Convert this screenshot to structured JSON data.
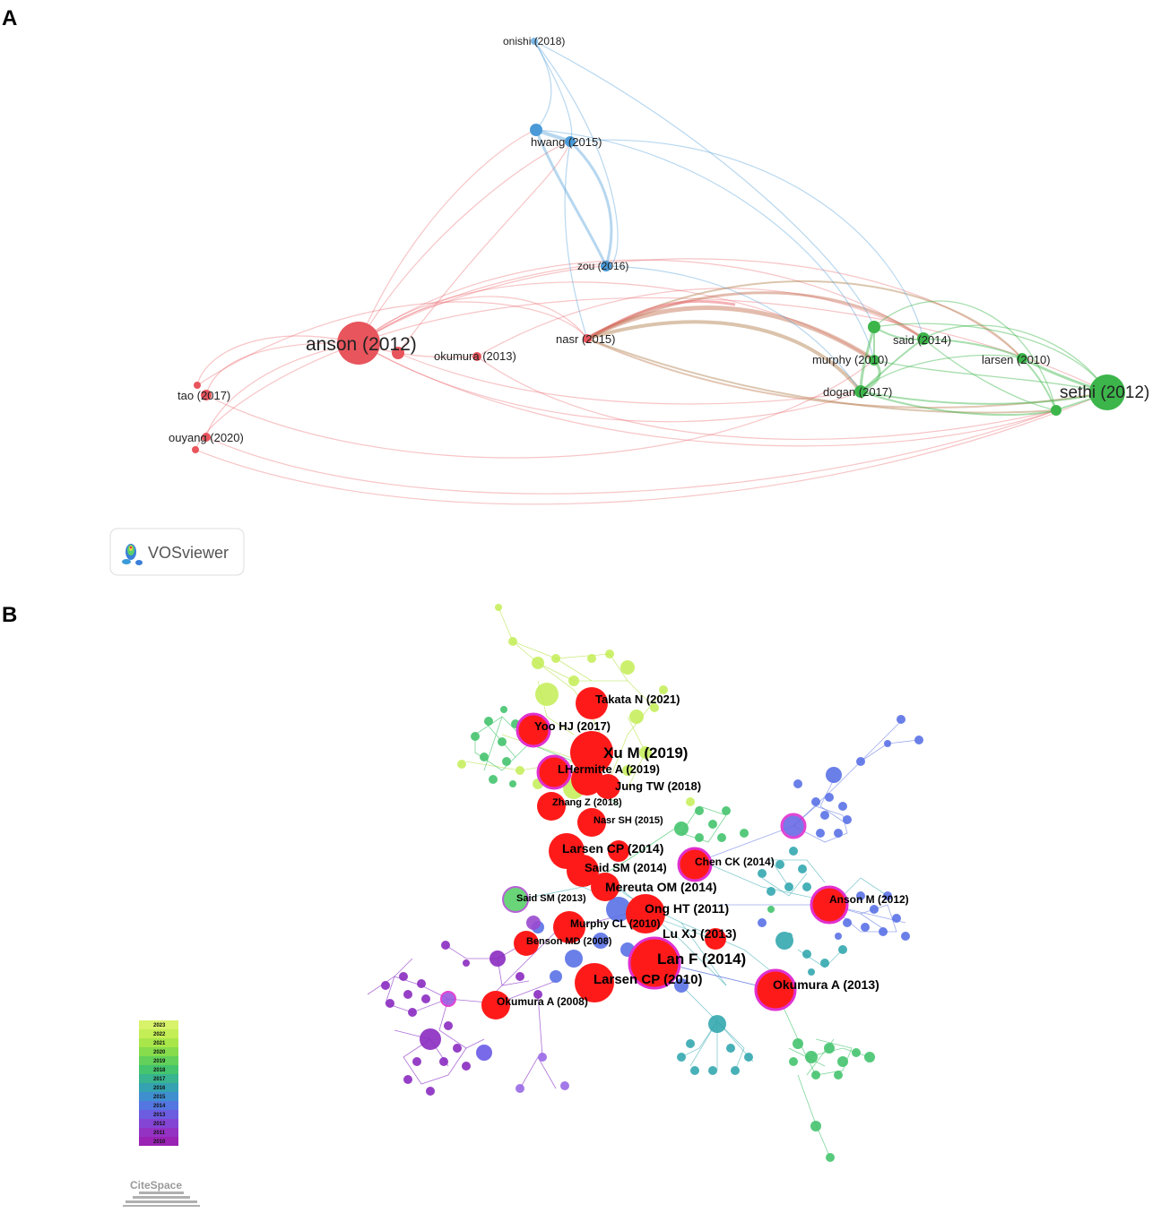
{
  "panel_a": {
    "letter": "A",
    "brand": "VOSviewer",
    "colors": {
      "red": "#e8555d",
      "green": "#3cb54a",
      "blue": "#4a9ad8"
    },
    "labels": {
      "onishi": "onishi (2018)",
      "hwang": "hwang (2015)",
      "zou": "zou (2016)",
      "anson": "anson (2012)",
      "nasr": "nasr (2015)",
      "okumura": "okumura (2013)",
      "said": "said (2014)",
      "murphy": "murphy (2010)",
      "larsen": "larsen (2010)",
      "dogan": "dogan (2017)",
      "sethi": "sethi (2012)",
      "tao": "tao (2017)",
      "ouyang": "ouyang (2020)"
    }
  },
  "panel_b": {
    "letter": "B",
    "brand": "CiteSpace",
    "highlight_color": "#ff1a1a",
    "labels": {
      "takata": "Takata N (2021)",
      "yoo": "Yoo HJ (2017)",
      "xu": "Xu M (2019)",
      "lhermitte": "LHermitte A (2019)",
      "jung": "Jung TW (2018)",
      "zhang": "Zhang Z (2018)",
      "nasr": "Nasr SH (2015)",
      "larsen2014": "Larsen CP (2014)",
      "chen": "Chen CK (2014)",
      "said2014": "Said SM (2014)",
      "mereuta": "Mereuta OM (2014)",
      "anson": "Anson M (2012)",
      "said2013": "Said SM (2013)",
      "ong": "Ong HT (2011)",
      "murphy": "Murphy CL (2010)",
      "lu": "Lu XJ (2013)",
      "benson": "Benson MD (2008)",
      "lan": "Lan F (2014)",
      "larsen2010": "Larsen CP (2010)",
      "okumura2013": "Okumura A (2013)",
      "okumura2008": "Okumura A (2008)"
    },
    "legend_years": [
      "2023",
      "2022",
      "2021",
      "2020",
      "2019",
      "2018",
      "2017",
      "2016",
      "2015",
      "2014",
      "2013",
      "2012",
      "2011",
      "2010"
    ],
    "legend_colors": [
      "#d8f26a",
      "#c4ee55",
      "#a8e64a",
      "#86dc4c",
      "#62d05a",
      "#45c46e",
      "#38b490",
      "#34a2b0",
      "#3f8ed0",
      "#5376e0",
      "#6c5ce0",
      "#8444d4",
      "#9432c4",
      "#9a22b4"
    ]
  }
}
